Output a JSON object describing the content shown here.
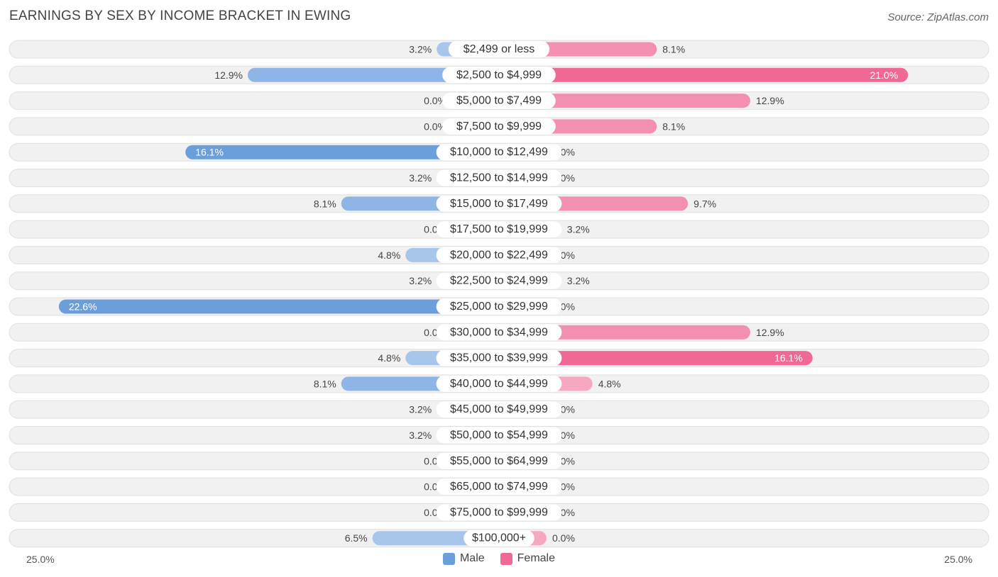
{
  "title": "EARNINGS BY SEX BY INCOME BRACKET IN EWING",
  "source": "Source: ZipAtlas.com",
  "axis": {
    "left_label": "25.0%",
    "right_label": "25.0%"
  },
  "legend": {
    "male": "Male",
    "female": "Female"
  },
  "colors": {
    "male_light": "#a8c6ec",
    "male_dark": "#6b9fdc",
    "female_light": "#f6a8c1",
    "female_dark": "#f06894",
    "row_bg": "#f1f1f1",
    "row_border": "#e0e0e0"
  },
  "chart_data": {
    "type": "bar",
    "orientation": "diverging-horizontal",
    "title": "EARNINGS BY SEX BY INCOME BRACKET IN EWING",
    "xlim": [
      -25,
      25
    ],
    "series": [
      {
        "name": "Male",
        "values": [
          3.2,
          12.9,
          0.0,
          0.0,
          16.1,
          3.2,
          8.1,
          0.0,
          4.8,
          3.2,
          22.6,
          0.0,
          4.8,
          8.1,
          3.2,
          3.2,
          0.0,
          0.0,
          0.0,
          6.5
        ],
        "labels": [
          "3.2%",
          "12.9%",
          "0.0%",
          "0.0%",
          "16.1%",
          "3.2%",
          "8.1%",
          "0.0%",
          "4.8%",
          "3.2%",
          "22.6%",
          "0.0%",
          "4.8%",
          "8.1%",
          "3.2%",
          "3.2%",
          "0.0%",
          "0.0%",
          "0.0%",
          "6.5%"
        ]
      },
      {
        "name": "Female",
        "values": [
          8.1,
          21.0,
          12.9,
          8.1,
          0.0,
          0.0,
          9.7,
          3.2,
          0.0,
          3.2,
          0.0,
          12.9,
          16.1,
          4.8,
          0.0,
          0.0,
          0.0,
          0.0,
          0.0,
          0.0
        ],
        "labels": [
          "8.1%",
          "21.0%",
          "12.9%",
          "8.1%",
          "0.0%",
          "0.0%",
          "9.7%",
          "3.2%",
          "0.0%",
          "3.2%",
          "0.0%",
          "12.9%",
          "16.1%",
          "4.8%",
          "0.0%",
          "0.0%",
          "0.0%",
          "0.0%",
          "0.0%",
          "0.0%"
        ]
      }
    ],
    "categories": [
      "$2,499 or less",
      "$2,500 to $4,999",
      "$5,000 to $7,499",
      "$7,500 to $9,999",
      "$10,000 to $12,499",
      "$12,500 to $14,999",
      "$15,000 to $17,499",
      "$17,500 to $19,999",
      "$20,000 to $22,499",
      "$22,500 to $24,999",
      "$25,000 to $29,999",
      "$30,000 to $34,999",
      "$35,000 to $39,999",
      "$40,000 to $44,999",
      "$45,000 to $49,999",
      "$50,000 to $54,999",
      "$55,000 to $64,999",
      "$65,000 to $74,999",
      "$75,000 to $99,999",
      "$100,000+"
    ],
    "legend_position": "bottom-center"
  }
}
